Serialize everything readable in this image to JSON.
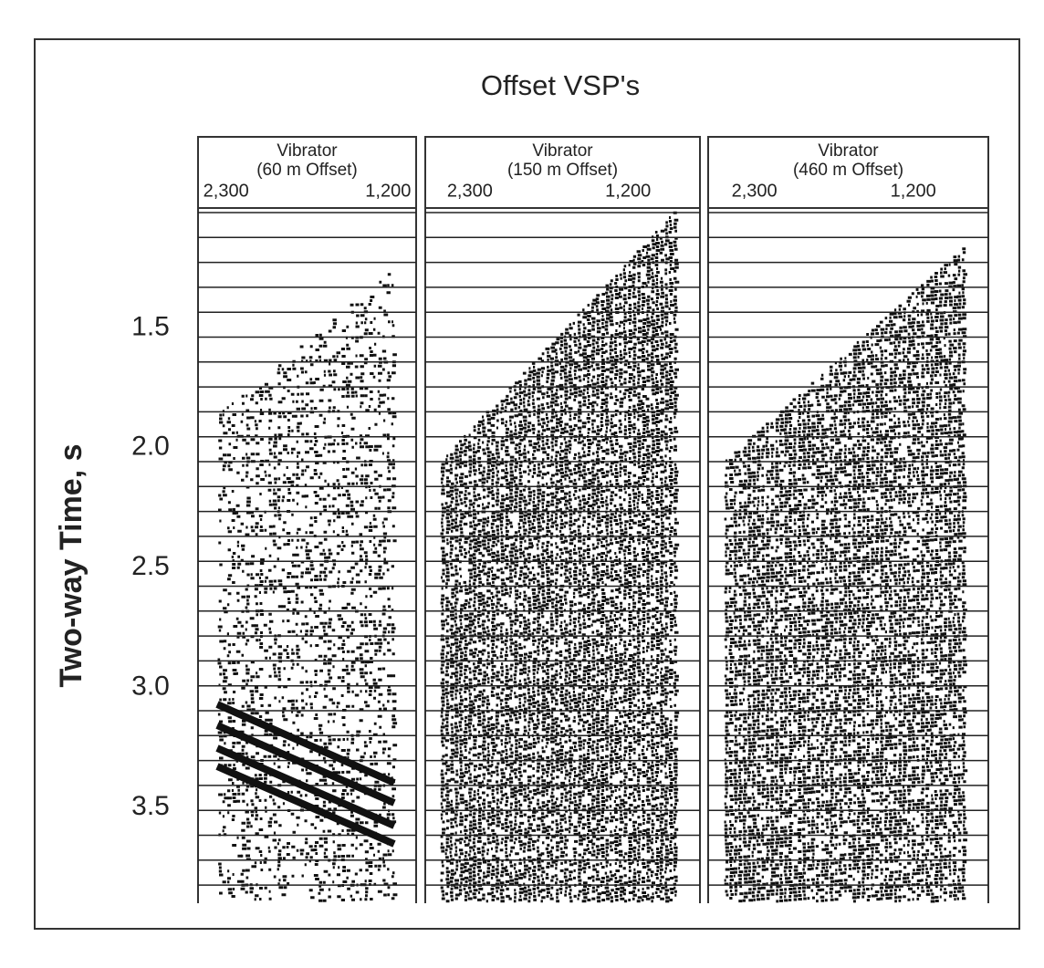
{
  "figure": {
    "title": "Offset VSP's",
    "ylabel": "Two-way Time, s",
    "ylim": [
      1.0,
      3.9
    ],
    "y_inverted": true,
    "yticks": [
      1.5,
      {
        "value": 2,
        "label": "2.0"
      },
      2.5,
      {
        "value": 3,
        "label": "3.0"
      },
      3.5
    ]
  },
  "chart_data": [
    {
      "type": "seismic",
      "title": "Vibrator",
      "subtitle": "(60 m Offset)",
      "xlim": [
        2490,
        1010
      ],
      "xticks": [
        {
          "value": 2300,
          "label": "2,300"
        },
        {
          "value": 1200,
          "label": "1,200"
        }
      ]
    },
    {
      "type": "seismic",
      "title": "Vibrator",
      "subtitle": "(150 m Offset)",
      "xlim": [
        2610,
        700
      ],
      "xticks": [
        {
          "value": 2300,
          "label": "2,300"
        },
        {
          "value": 1200,
          "label": "1,200"
        }
      ]
    },
    {
      "type": "seismic",
      "title": "Vibrator",
      "subtitle": "(460 m Offset)",
      "xlim": [
        2620,
        680
      ],
      "xticks": [
        {
          "value": 2300,
          "label": "2,300"
        },
        {
          "value": 1200,
          "label": "1,200"
        }
      ]
    }
  ]
}
